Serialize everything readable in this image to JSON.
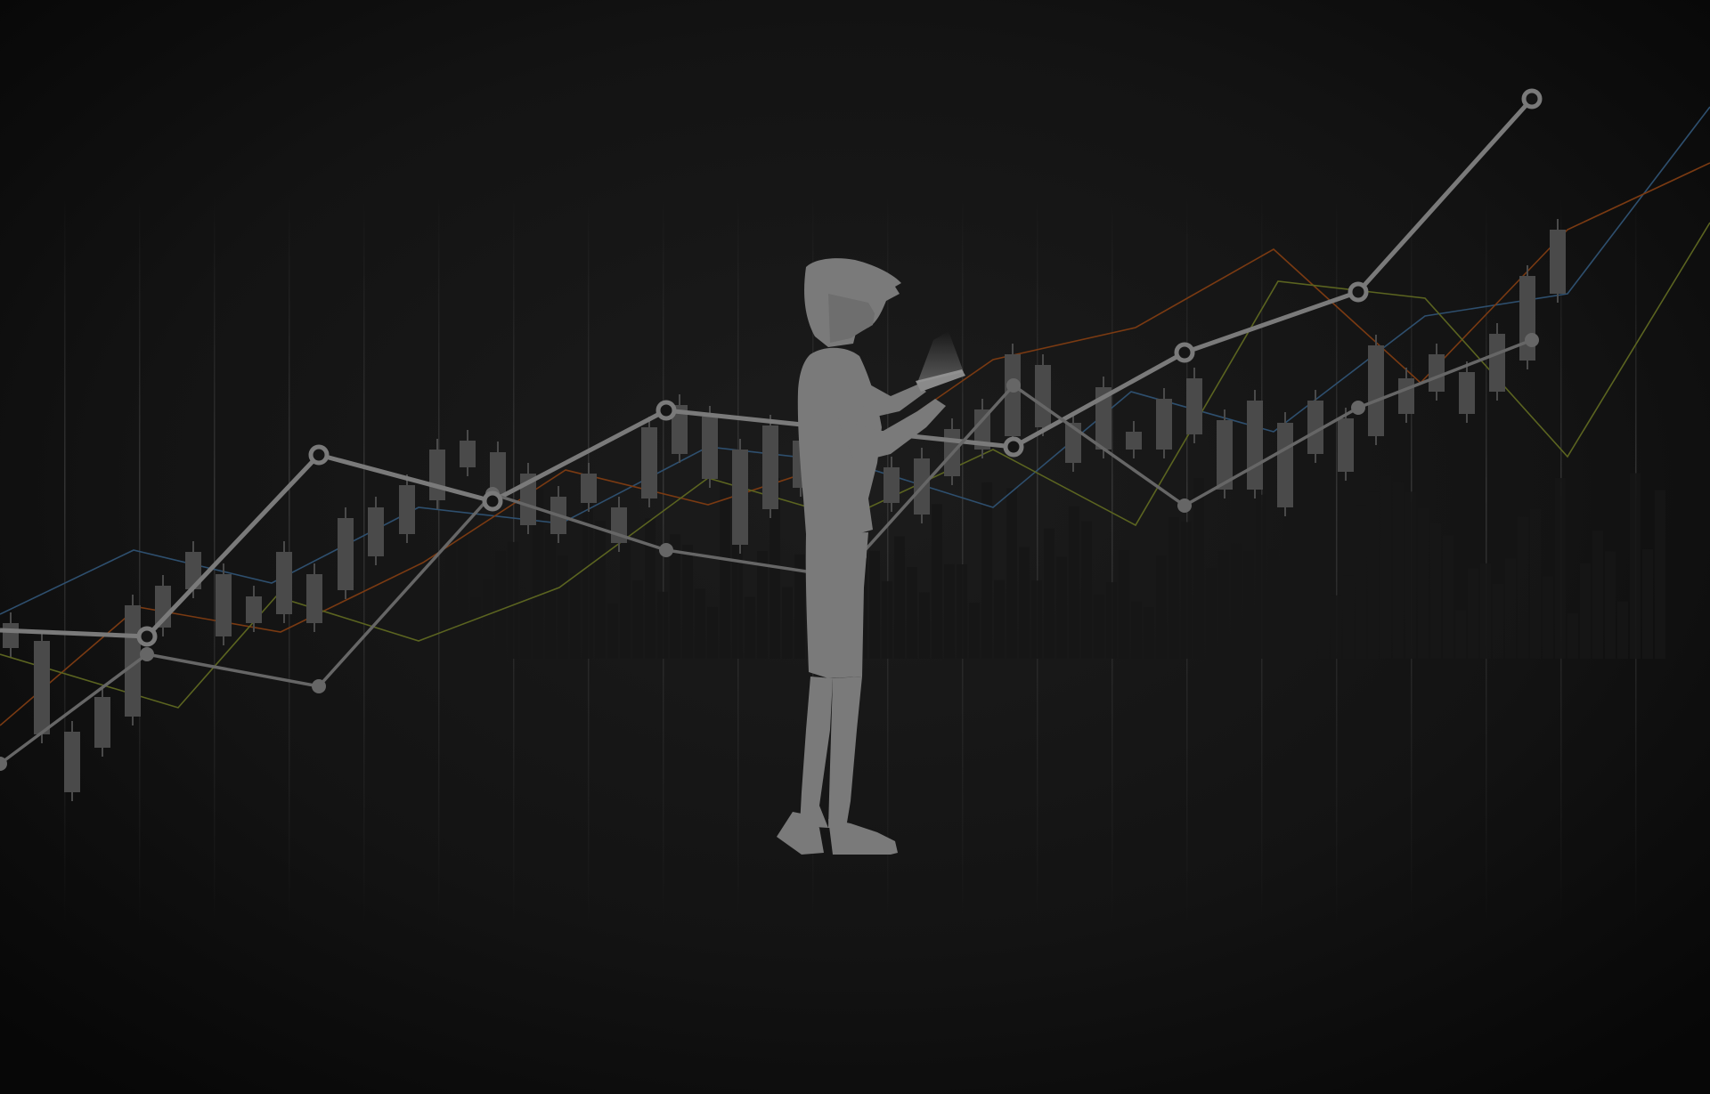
{
  "background": {
    "top": "#141414",
    "center": "#1b1b1b",
    "edge": "#070707"
  },
  "colors": {
    "thin_blue": "#2e4f6e",
    "thin_orange": "#7a3a12",
    "thin_green": "#5b6420",
    "trend_main": "#7a7a7a",
    "trend_secondary": "#666666",
    "candle": "#4a4a4a",
    "silhouette": "#7a7a7a",
    "city": "#161616"
  },
  "icons": [
    "person-silhouette-icon",
    "tablet-icon",
    "city-skyline-icon"
  ]
}
